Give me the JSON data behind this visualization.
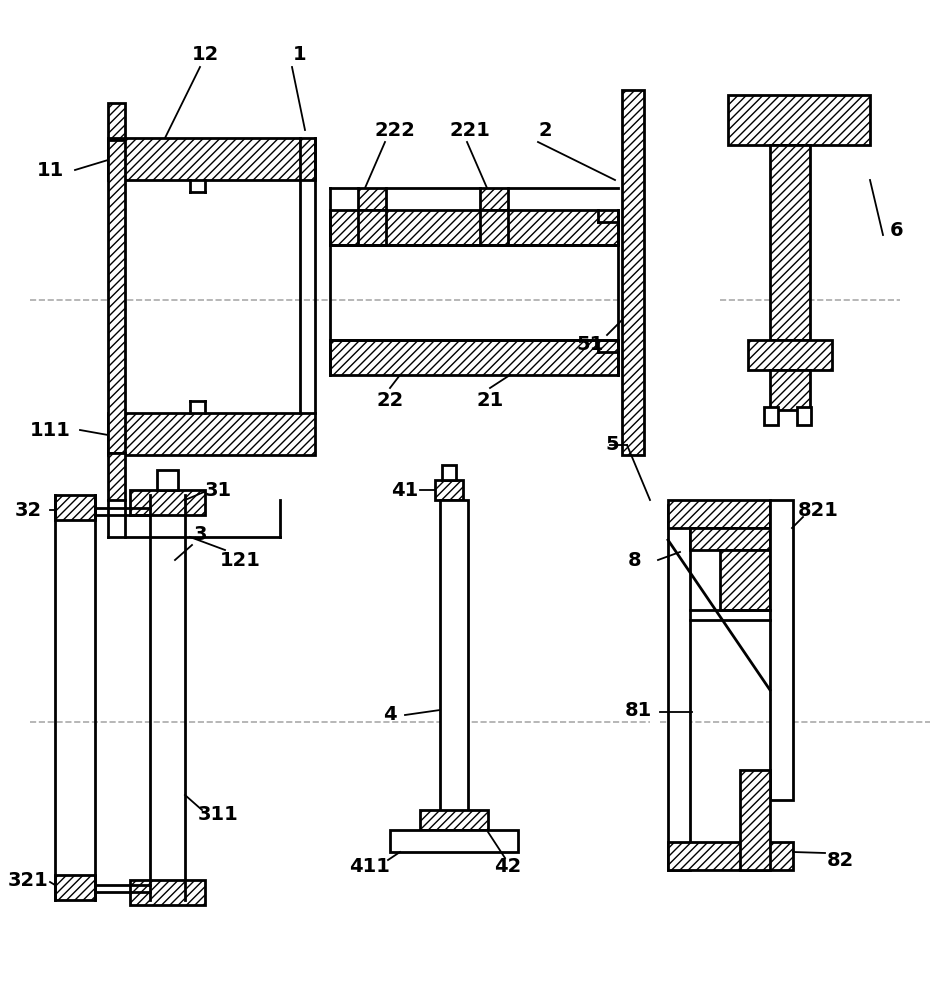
{
  "bg_color": "#ffffff",
  "lw": 2.0,
  "lwt": 1.2,
  "fs": 14,
  "figsize": [
    9.33,
    10.0
  ],
  "dpi": 100
}
